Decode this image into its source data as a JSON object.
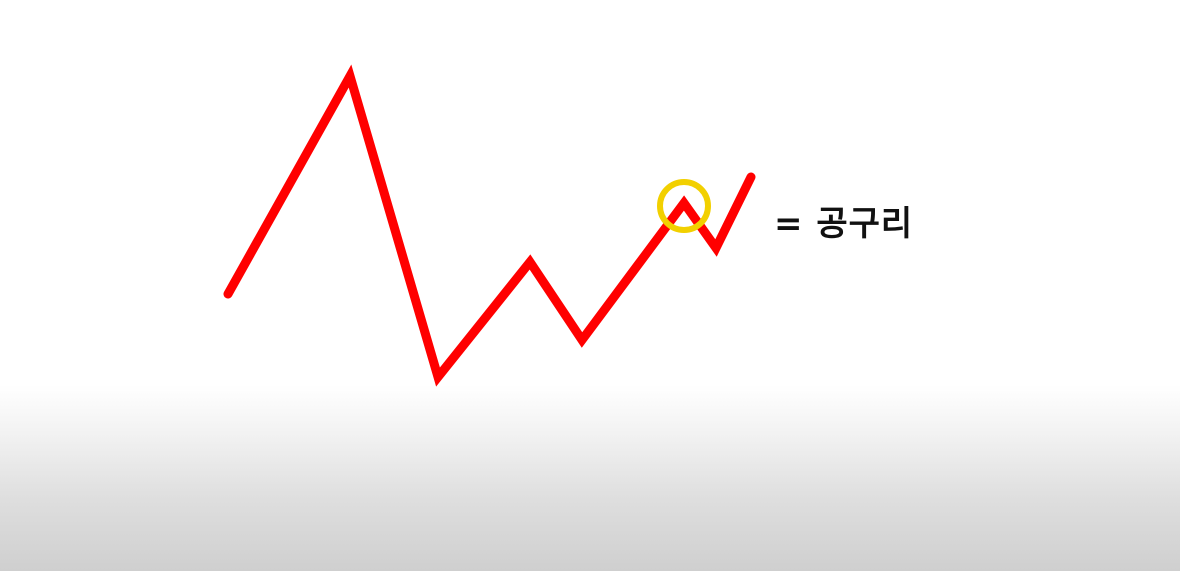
{
  "diagram": {
    "line_color": "#ff0000",
    "marker_color": "#f2d000",
    "label_color": "#111111",
    "marker_icon": "circle-highlight",
    "label_text": "= 공구리"
  }
}
